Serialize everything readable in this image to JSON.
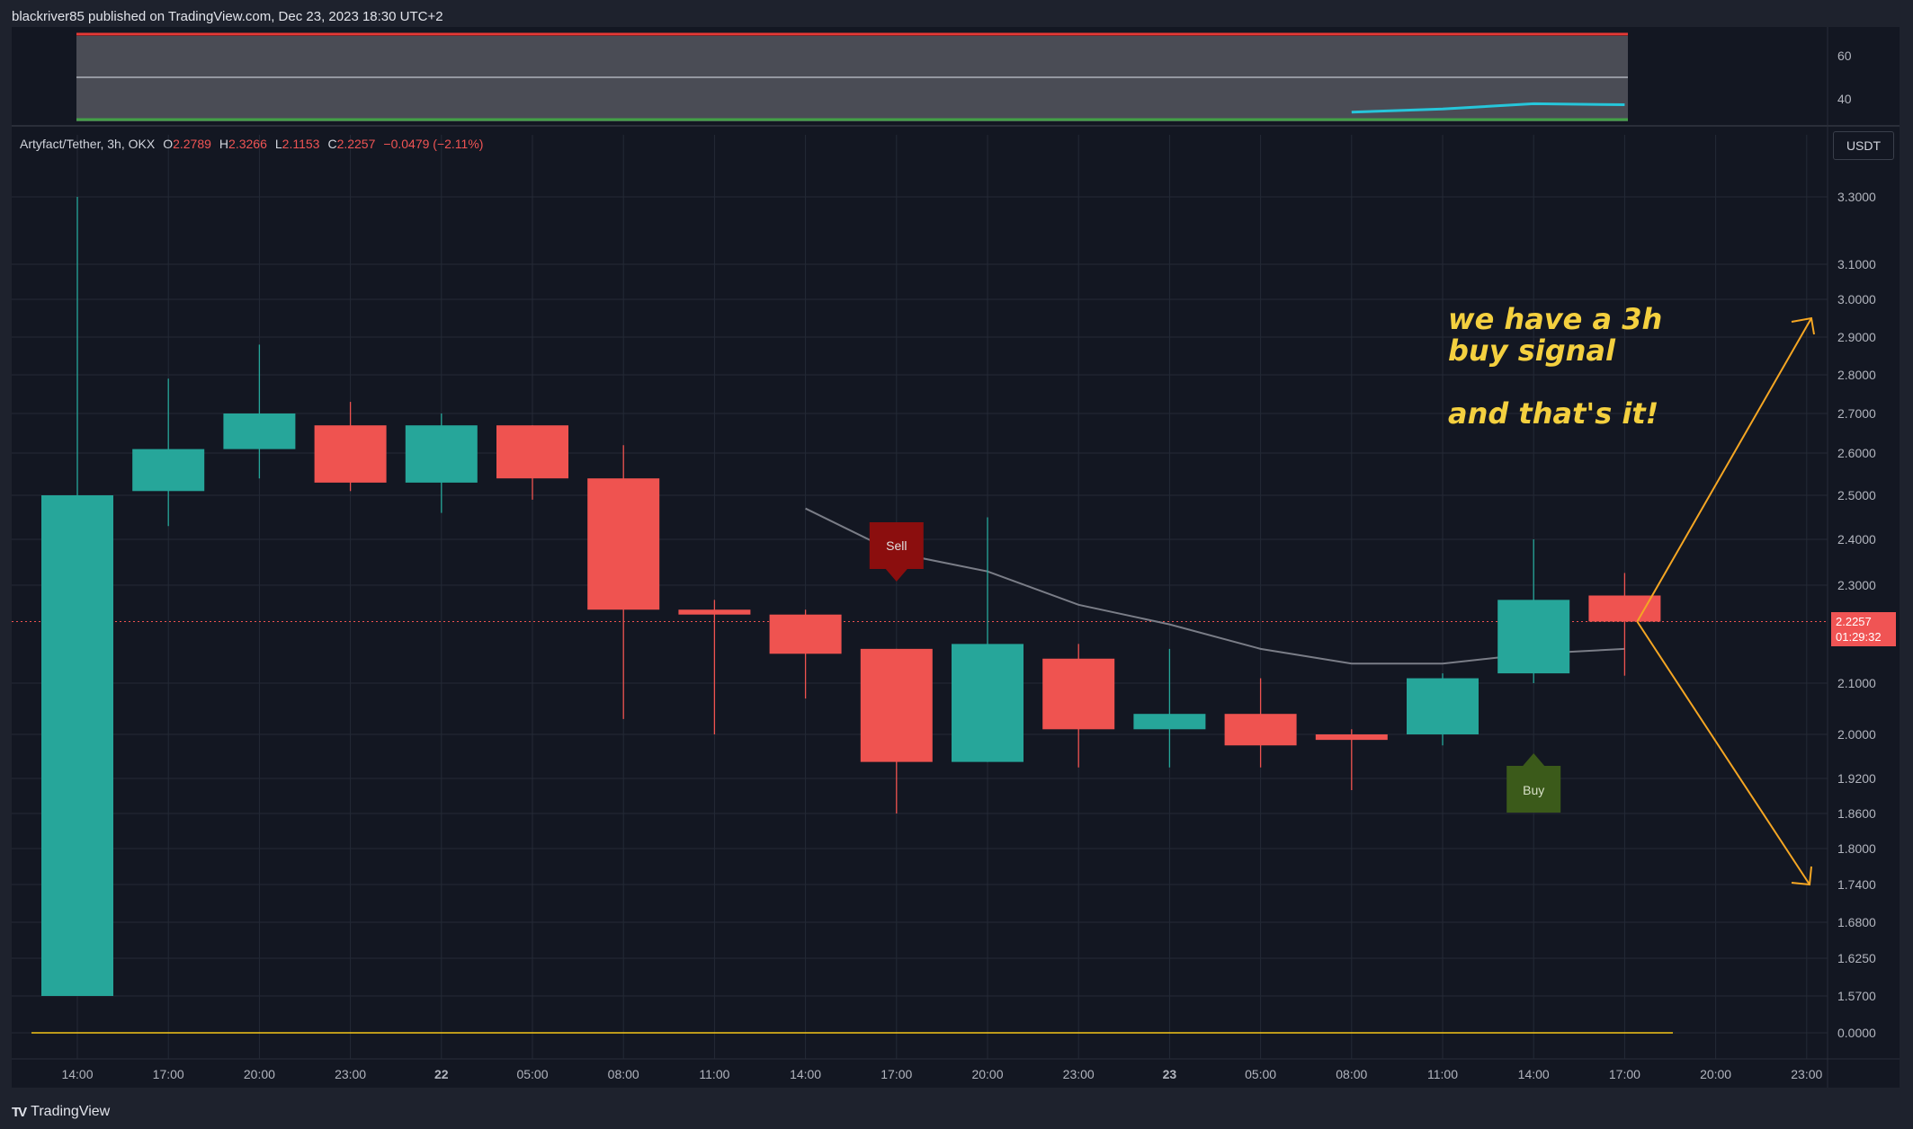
{
  "header": {
    "publisher": "blackriver85 published on TradingView.com, Dec 23, 2023 18:30 UTC+2"
  },
  "footer": {
    "brand": "TradingView",
    "logo": "TV"
  },
  "legend": {
    "symbol": "Artyfact/Tether, 3h, OKX",
    "o_label": "O",
    "o": "2.2789",
    "h_label": "H",
    "h": "2.3266",
    "l_label": "L",
    "l": "2.1153",
    "c_label": "C",
    "c": "2.2257",
    "change": "−0.0479 (−2.11%)"
  },
  "currency_button": "USDT",
  "price_badge": {
    "price": "2.2257",
    "countdown": "01:29:32"
  },
  "note_lines": [
    "we have a 3h",
    "buy signal",
    "",
    "and that's it!"
  ],
  "signals": {
    "sell": "Sell",
    "buy": "Buy"
  },
  "colors": {
    "bg": "#131722",
    "frame": "#1e222d",
    "grid": "#242a36",
    "up": "#26a69a",
    "down": "#ef5350",
    "ma": "#7a7d87",
    "arrow": "#f5a623",
    "osc_line": "#26c6da",
    "osc_upper": "#e53935",
    "osc_lower": "#43a047",
    "zero_line": "#f5c518",
    "note": "#f4d03f",
    "sell_bg": "#8b0e0e",
    "buy_bg": "#3b5a1a"
  },
  "chart_data": {
    "type": "candlestick",
    "x_labels": [
      "14:00",
      "17:00",
      "20:00",
      "23:00",
      "22",
      "05:00",
      "08:00",
      "11:00",
      "14:00",
      "17:00",
      "20:00",
      "23:00",
      "23",
      "05:00",
      "08:00",
      "11:00",
      "14:00",
      "17:00",
      "20:00",
      "23:00"
    ],
    "y_ticks": [
      "3.3000",
      "3.1000",
      "3.0000",
      "2.9000",
      "2.8000",
      "2.7000",
      "2.6000",
      "2.5000",
      "2.4000",
      "2.3000",
      "2.1000",
      "2.0000",
      "1.9200",
      "1.8600",
      "1.8000",
      "1.7400",
      "1.6800",
      "1.6250",
      "1.5700",
      "0.0000"
    ],
    "candles": [
      {
        "t": "14:00",
        "o": 1.57,
        "h": 3.3,
        "l": 1.57,
        "c": 2.5
      },
      {
        "t": "17:00",
        "o": 2.51,
        "h": 2.79,
        "l": 2.43,
        "c": 2.61
      },
      {
        "t": "20:00",
        "o": 2.61,
        "h": 2.88,
        "l": 2.54,
        "c": 2.7
      },
      {
        "t": "23:00",
        "o": 2.67,
        "h": 2.73,
        "l": 2.51,
        "c": 2.53
      },
      {
        "t": "22",
        "o": 2.53,
        "h": 2.7,
        "l": 2.46,
        "c": 2.67
      },
      {
        "t": "05:00",
        "o": 2.67,
        "h": 2.67,
        "l": 2.49,
        "c": 2.54
      },
      {
        "t": "08:00",
        "o": 2.54,
        "h": 2.62,
        "l": 2.03,
        "c": 2.25
      },
      {
        "t": "11:00",
        "o": 2.25,
        "h": 2.27,
        "l": 2.0,
        "c": 2.24
      },
      {
        "t": "14:00",
        "o": 2.24,
        "h": 2.25,
        "l": 2.07,
        "c": 2.16
      },
      {
        "t": "17:00",
        "o": 2.17,
        "h": 2.17,
        "l": 1.86,
        "c": 1.95
      },
      {
        "t": "20:00",
        "o": 1.95,
        "h": 2.45,
        "l": 1.95,
        "c": 2.18
      },
      {
        "t": "23:00",
        "o": 2.15,
        "h": 2.18,
        "l": 1.94,
        "c": 2.01
      },
      {
        "t": "23",
        "o": 2.01,
        "h": 2.17,
        "l": 1.94,
        "c": 2.04
      },
      {
        "t": "05:00",
        "o": 2.04,
        "h": 2.11,
        "l": 1.94,
        "c": 1.98
      },
      {
        "t": "08:00",
        "o": 2.0,
        "h": 2.01,
        "l": 1.9,
        "c": 1.99
      },
      {
        "t": "11:00",
        "o": 2.0,
        "h": 2.12,
        "l": 1.98,
        "c": 2.11
      },
      {
        "t": "14:00",
        "o": 2.12,
        "h": 2.4,
        "l": 2.1,
        "c": 2.27
      },
      {
        "t": "17:00",
        "o": 2.2789,
        "h": 2.3266,
        "l": 2.1153,
        "c": 2.2257
      }
    ],
    "moving_average": [
      {
        "i": 8,
        "v": 2.47
      },
      {
        "i": 9,
        "v": 2.37
      },
      {
        "i": 10,
        "v": 2.33
      },
      {
        "i": 11,
        "v": 2.26
      },
      {
        "i": 12,
        "v": 2.22
      },
      {
        "i": 13,
        "v": 2.17
      },
      {
        "i": 14,
        "v": 2.14
      },
      {
        "i": 15,
        "v": 2.14
      },
      {
        "i": 16,
        "v": 2.16
      },
      {
        "i": 17,
        "v": 2.17
      }
    ],
    "last_price": 2.2257,
    "sell_signal_index": 9,
    "buy_signal_index": 16,
    "oscillator": {
      "y_ticks": [
        "60",
        "40"
      ],
      "upper_band": 70,
      "mid": 50,
      "lower_band": 30,
      "line": [
        {
          "i": 14,
          "v": 37
        },
        {
          "i": 15,
          "v": 40
        },
        {
          "i": 16,
          "v": 45
        },
        {
          "i": 17,
          "v": 44
        }
      ]
    },
    "projection": {
      "from_index": 17,
      "from_price": 2.2257,
      "to_up": 2.95,
      "to_down": 1.74
    }
  }
}
